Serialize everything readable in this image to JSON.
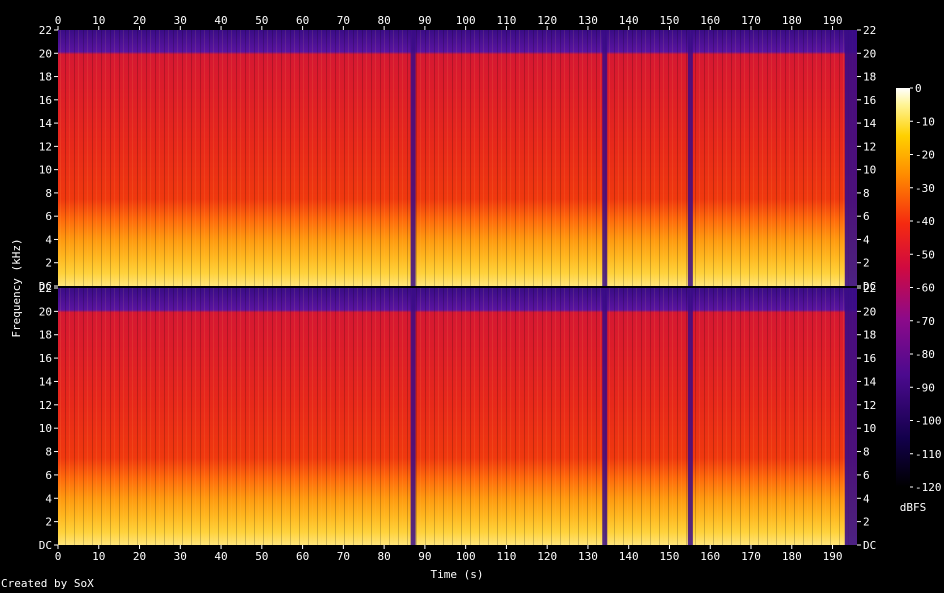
{
  "chart_data": {
    "type": "heatmap",
    "title": "",
    "xlabel": "Time (s)",
    "ylabel": "Frequency (kHz)",
    "colorbar_label": "dBFS",
    "x_range": [
      0,
      196
    ],
    "y_range_khz": [
      0,
      22
    ],
    "x_ticks": [
      0,
      10,
      20,
      30,
      40,
      50,
      60,
      70,
      80,
      90,
      100,
      110,
      120,
      130,
      140,
      150,
      160,
      170,
      180,
      190
    ],
    "y_ticks": [
      {
        "value": 0,
        "label": "DC"
      },
      {
        "value": 2,
        "label": "2"
      },
      {
        "value": 4,
        "label": "4"
      },
      {
        "value": 6,
        "label": "6"
      },
      {
        "value": 8,
        "label": "8"
      },
      {
        "value": 10,
        "label": "10"
      },
      {
        "value": 12,
        "label": "12"
      },
      {
        "value": 14,
        "label": "14"
      },
      {
        "value": 16,
        "label": "16"
      },
      {
        "value": 18,
        "label": "18"
      },
      {
        "value": 20,
        "label": "20"
      },
      {
        "value": 22,
        "label": "22"
      }
    ],
    "colorbar_ticks": [
      0,
      -10,
      -20,
      -30,
      -40,
      -50,
      -60,
      -70,
      -80,
      -90,
      -100,
      -110,
      -120
    ],
    "colorbar_range": [
      -120,
      0
    ],
    "channels": [
      "channel-1",
      "channel-2"
    ],
    "approx_profile": {
      "description_level_dbfs_by_band": {
        "low_0_to_5khz": -25,
        "mid_6_to_20khz": -55,
        "above_20khz": -85
      },
      "quiet_gaps_s": [
        87,
        134,
        155,
        193
      ]
    }
  },
  "credit": "Created by SoX"
}
